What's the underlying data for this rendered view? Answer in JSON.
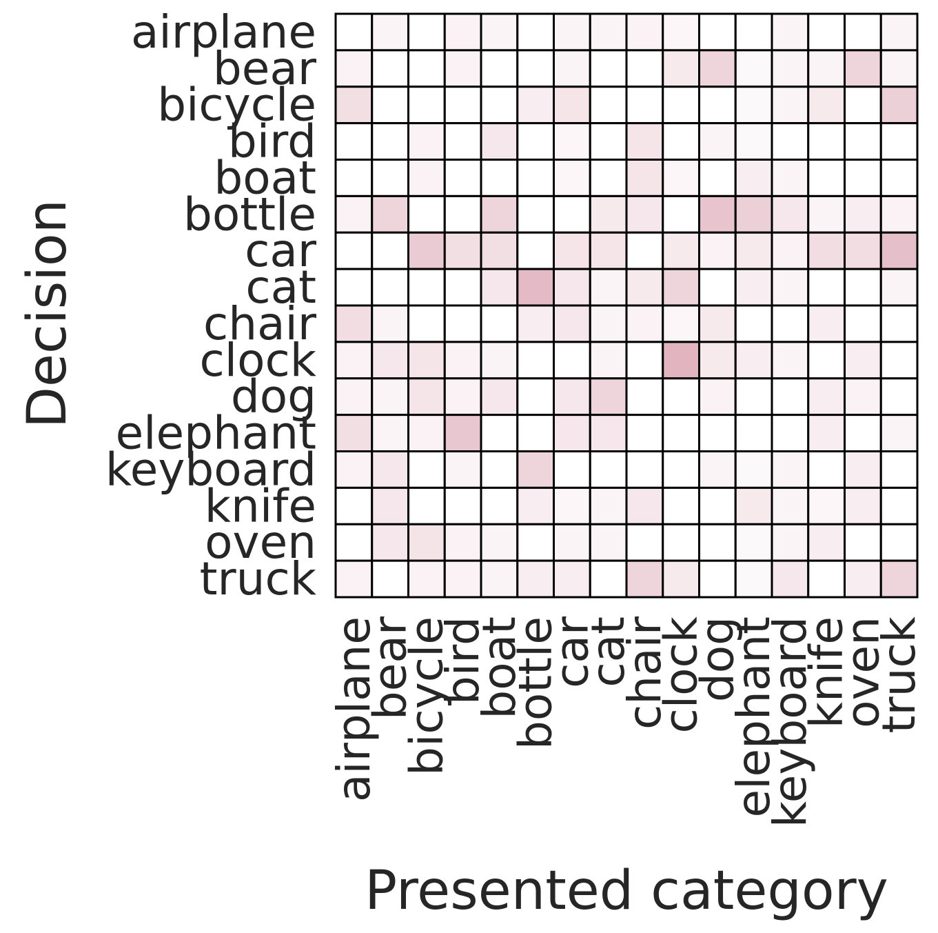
{
  "chart_data": {
    "type": "heatmap",
    "xlabel": "Presented category",
    "ylabel": "Decision",
    "x_categories": [
      "airplane",
      "bear",
      "bicycle",
      "bird",
      "boat",
      "bottle",
      "car",
      "cat",
      "chair",
      "clock",
      "dog",
      "elephant",
      "keyboard",
      "knife",
      "oven",
      "truck"
    ],
    "y_categories": [
      "airplane",
      "bear",
      "bicycle",
      "bird",
      "boat",
      "bottle",
      "car",
      "cat",
      "chair",
      "clock",
      "dog",
      "elephant",
      "keyboard",
      "knife",
      "oven",
      "truck"
    ],
    "value_range": [
      0,
      1
    ],
    "grid": true,
    "colors": {
      "low": "#ffffff",
      "high": "#a8284a",
      "grid": "#000000",
      "text": "#262626"
    },
    "values": [
      [
        0.0,
        0.05,
        0.0,
        0.06,
        0.05,
        0.0,
        0.05,
        0.05,
        0.06,
        0.04,
        0.0,
        0.0,
        0.05,
        0.0,
        0.0,
        0.05
      ],
      [
        0.06,
        0.0,
        0.0,
        0.06,
        0.0,
        0.0,
        0.05,
        0.0,
        0.0,
        0.1,
        0.2,
        0.03,
        0.05,
        0.05,
        0.2,
        0.05
      ],
      [
        0.15,
        0.0,
        0.0,
        0.0,
        0.0,
        0.08,
        0.12,
        0.0,
        0.0,
        0.0,
        0.0,
        0.03,
        0.05,
        0.1,
        0.0,
        0.22
      ],
      [
        0.0,
        0.0,
        0.06,
        0.0,
        0.11,
        0.0,
        0.04,
        0.0,
        0.12,
        0.0,
        0.05,
        0.03,
        0.0,
        0.0,
        0.0,
        0.0
      ],
      [
        0.0,
        0.0,
        0.06,
        0.0,
        0.0,
        0.0,
        0.04,
        0.0,
        0.12,
        0.04,
        0.0,
        0.08,
        0.05,
        0.0,
        0.0,
        0.0
      ],
      [
        0.06,
        0.2,
        0.0,
        0.0,
        0.2,
        0.0,
        0.0,
        0.1,
        0.11,
        0.0,
        0.27,
        0.22,
        0.11,
        0.05,
        0.08,
        0.06
      ],
      [
        0.0,
        0.0,
        0.24,
        0.15,
        0.15,
        0.0,
        0.12,
        0.12,
        0.0,
        0.1,
        0.06,
        0.1,
        0.06,
        0.16,
        0.16,
        0.3
      ],
      [
        0.0,
        0.0,
        0.0,
        0.0,
        0.11,
        0.32,
        0.11,
        0.05,
        0.1,
        0.2,
        0.0,
        0.08,
        0.05,
        0.0,
        0.0,
        0.05
      ],
      [
        0.16,
        0.05,
        0.0,
        0.0,
        0.0,
        0.08,
        0.11,
        0.05,
        0.06,
        0.04,
        0.1,
        0.0,
        0.0,
        0.08,
        0.0,
        0.0
      ],
      [
        0.06,
        0.11,
        0.12,
        0.06,
        0.05,
        0.0,
        0.0,
        0.05,
        0.0,
        0.35,
        0.1,
        0.08,
        0.05,
        0.0,
        0.08,
        0.0
      ],
      [
        0.06,
        0.05,
        0.12,
        0.06,
        0.11,
        0.0,
        0.11,
        0.2,
        0.0,
        0.0,
        0.06,
        0.0,
        0.0,
        0.08,
        0.06,
        0.0
      ],
      [
        0.15,
        0.05,
        0.06,
        0.26,
        0.0,
        0.0,
        0.11,
        0.11,
        0.0,
        0.0,
        0.0,
        0.0,
        0.0,
        0.08,
        0.0,
        0.05
      ],
      [
        0.06,
        0.11,
        0.0,
        0.05,
        0.0,
        0.2,
        0.0,
        0.0,
        0.0,
        0.0,
        0.05,
        0.03,
        0.05,
        0.0,
        0.08,
        0.0
      ],
      [
        0.0,
        0.11,
        0.0,
        0.0,
        0.0,
        0.08,
        0.04,
        0.05,
        0.11,
        0.0,
        0.0,
        0.1,
        0.05,
        0.04,
        0.08,
        0.0
      ],
      [
        0.0,
        0.11,
        0.13,
        0.06,
        0.05,
        0.0,
        0.05,
        0.05,
        0.0,
        0.0,
        0.0,
        0.03,
        0.05,
        0.08,
        0.0,
        0.0
      ],
      [
        0.06,
        0.0,
        0.06,
        0.06,
        0.05,
        0.08,
        0.08,
        0.0,
        0.2,
        0.1,
        0.0,
        0.03,
        0.11,
        0.0,
        0.08,
        0.2
      ]
    ]
  }
}
